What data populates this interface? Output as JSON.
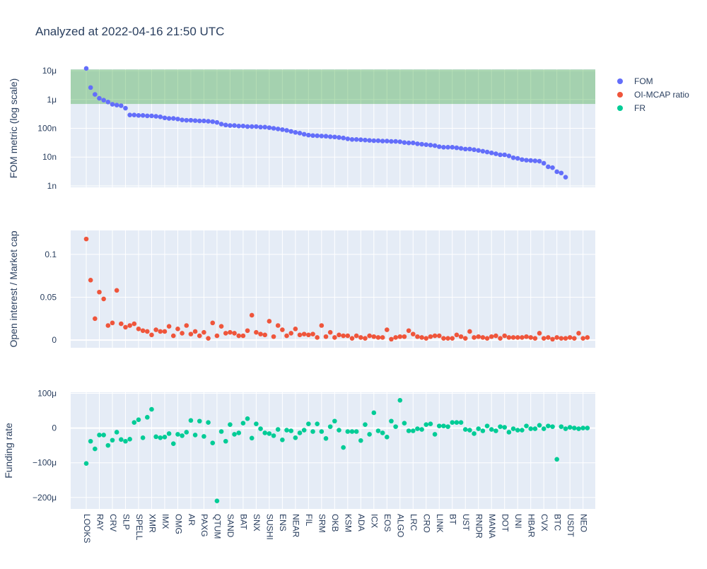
{
  "title": "Analyzed at 2022-04-16 21:50 UTC",
  "colors": {
    "plot_bg": "#e5ecf6",
    "grid": "#ffffff",
    "fom": "#636efa",
    "oi": "#ef553b",
    "fr": "#00cc96",
    "band": "#2ca02c"
  },
  "legend": {
    "placement": "top-right",
    "items": [
      "FOM",
      "OI-MCAP ratio",
      "FR"
    ]
  },
  "chart_data": [
    {
      "type": "scatter",
      "series_name": "FOM",
      "ylabel": "FOM metric (log scale)",
      "log_scale": true,
      "ylim_log10": [
        -9.05,
        -4.95
      ],
      "yticks": [
        {
          "value": 1e-05,
          "label": "10μ"
        },
        {
          "value": 1e-06,
          "label": "1μ"
        },
        {
          "value": 1e-07,
          "label": "100n"
        },
        {
          "value": 1e-08,
          "label": "10n"
        },
        {
          "value": 1e-09,
          "label": "1n"
        }
      ],
      "shaded_band": [
        7e-07,
        1.1e-05
      ],
      "values": [
        1.2e-05,
        2.6e-06,
        1.5e-06,
        1.1e-06,
        9.5e-07,
        8.2e-07,
        6.8e-07,
        6.4e-07,
        6.1e-07,
        5e-07,
        2.9e-07,
        2.9e-07,
        2.8e-07,
        2.8e-07,
        2.7e-07,
        2.7e-07,
        2.6e-07,
        2.5e-07,
        2.3e-07,
        2.2e-07,
        2.2e-07,
        2.1e-07,
        1.95e-07,
        1.9e-07,
        1.9e-07,
        1.85e-07,
        1.8e-07,
        1.8e-07,
        1.75e-07,
        1.7e-07,
        1.6e-07,
        1.4e-07,
        1.3e-07,
        1.25e-07,
        1.25e-07,
        1.2e-07,
        1.2e-07,
        1.15e-07,
        1.15e-07,
        1.15e-07,
        1.1e-07,
        1.1e-07,
        1.05e-07,
        1e-07,
        9.5e-08,
        9e-08,
        8.5e-08,
        7.8e-08,
        7.2e-08,
        6.8e-08,
        6.2e-08,
        5.8e-08,
        5.6e-08,
        5.5e-08,
        5.4e-08,
        5.3e-08,
        5.1e-08,
        5e-08,
        4.8e-08,
        4.6e-08,
        4.3e-08,
        4.1e-08,
        4.1e-08,
        4e-08,
        3.9e-08,
        3.8e-08,
        3.7e-08,
        3.7e-08,
        3.6e-08,
        3.6e-08,
        3.5e-08,
        3.5e-08,
        3.4e-08,
        3.2e-08,
        3.1e-08,
        3.1e-08,
        2.9e-08,
        2.8e-08,
        2.7e-08,
        2.6e-08,
        2.5e-08,
        2.3e-08,
        2.2e-08,
        2.2e-08,
        2.2e-08,
        2.1e-08,
        2e-08,
        1.9e-08,
        1.9e-08,
        1.8e-08,
        1.7e-08,
        1.6e-08,
        1.5e-08,
        1.4e-08,
        1.3e-08,
        1.2e-08,
        1.2e-08,
        1.1e-08,
        9.5e-09,
        9e-09,
        8.2e-09,
        7.8e-09,
        7.6e-09,
        7.4e-09,
        7.2e-09,
        6.1e-09,
        4.6e-09,
        4.3e-09,
        3.1e-09,
        2.8e-09,
        2e-09
      ]
    },
    {
      "type": "scatter",
      "series_name": "OI-MCAP ratio",
      "ylabel": "Open interest / Market cap",
      "log_scale": false,
      "ylim": [
        -0.009,
        0.128
      ],
      "yticks": [
        {
          "value": 0.1,
          "label": "0.1"
        },
        {
          "value": 0.05,
          "label": "0.05"
        },
        {
          "value": 0,
          "label": "0"
        }
      ],
      "values": [
        0.118,
        0.07,
        0.025,
        0.056,
        0.048,
        0.017,
        0.02,
        0.058,
        0.019,
        0.015,
        0.017,
        0.019,
        0.013,
        0.011,
        0.01,
        0.006,
        0.012,
        0.01,
        0.01,
        0.016,
        0.005,
        0.013,
        0.008,
        0.017,
        0.007,
        0.01,
        0.005,
        0.009,
        0.002,
        0.02,
        0.005,
        0.016,
        0.008,
        0.009,
        0.008,
        0.005,
        0.005,
        0.011,
        0.029,
        0.009,
        0.007,
        0.006,
        0.022,
        0.004,
        0.017,
        0.012,
        0.005,
        0.008,
        0.013,
        0.006,
        0.007,
        0.006,
        0.007,
        0.003,
        0.017,
        0.004,
        0.009,
        0.003,
        0.006,
        0.005,
        0.005,
        0.002,
        0.005,
        0.003,
        0.002,
        0.005,
        0.004,
        0.003,
        0.003,
        0.012,
        0.001,
        0.003,
        0.004,
        0.004,
        0.011,
        0.007,
        0.004,
        0.003,
        0.002,
        0.004,
        0.005,
        0.005,
        0.002,
        0.002,
        0.002,
        0.006,
        0.004,
        0.002,
        0.01,
        0.003,
        0.004,
        0.003,
        0.002,
        0.004,
        0.005,
        0.002,
        0.005,
        0.003,
        0.003,
        0.003,
        0.003,
        0.004,
        0.003,
        0.002,
        0.008,
        0.002,
        0.003,
        0.001,
        0.003,
        0.002,
        0.002,
        0.003,
        0.002,
        0.008,
        0.002,
        0.003
      ]
    },
    {
      "type": "scatter",
      "series_name": "FR",
      "ylabel": "Funding rate",
      "log_scale": false,
      "ylim": [
        -0.000233,
        0.000103
      ],
      "yticks": [
        {
          "value": 0.0001,
          "label": "100μ"
        },
        {
          "value": 0,
          "label": "0"
        },
        {
          "value": -0.0001,
          "label": "−100μ"
        },
        {
          "value": -0.0002,
          "label": "−200μ"
        }
      ],
      "values": [
        -0.000102,
        -3.8e-05,
        -6e-05,
        -2e-05,
        -2e-05,
        -5e-05,
        -3.5e-05,
        -1.2e-05,
        -3.3e-05,
        -3.8e-05,
        -3.2e-05,
        1.6e-05,
        2.4e-05,
        -2.8e-05,
        3.1e-05,
        5.4e-05,
        -2.5e-05,
        -2.8e-05,
        -2.6e-05,
        -1.6e-05,
        -4.5e-05,
        -1.8e-05,
        -2.2e-05,
        -1.2e-05,
        2.2e-05,
        -2e-05,
        2e-05,
        -2.4e-05,
        1.6e-05,
        -4.3e-05,
        -0.00021,
        -1e-05,
        -3.8e-05,
        1e-05,
        -1.8e-05,
        -1.4e-05,
        1.4e-05,
        2.7e-05,
        -2.9e-05,
        1.2e-05,
        -2e-06,
        -1.4e-05,
        -1.6e-05,
        -2.2e-05,
        -4e-06,
        -3.4e-05,
        -6e-06,
        -8e-06,
        -2.8e-05,
        -1.4e-05,
        -6e-06,
        1.2e-05,
        -1e-05,
        1.2e-05,
        -1e-05,
        -3e-05,
        4e-06,
        2e-05,
        -6e-06,
        -5.6e-05,
        -1e-05,
        -1e-05,
        -1e-05,
        -3.6e-05,
        1e-05,
        -1.8e-05,
        4.4e-05,
        -8e-06,
        -1.4e-05,
        -2.6e-05,
        2e-05,
        4e-06,
        8e-05,
        1.4e-05,
        -8e-06,
        -8e-06,
        -2e-06,
        -4e-06,
        1e-05,
        1.2e-05,
        -1.8e-05,
        6e-06,
        6e-06,
        4e-06,
        1.6e-05,
        1.6e-05,
        1.6e-05,
        -4e-06,
        -6e-06,
        -1.6e-05,
        -2e-06,
        -8e-06,
        6e-06,
        -4e-06,
        -8e-06,
        4e-06,
        2e-06,
        -1.2e-05,
        -2e-06,
        -6e-06,
        -6e-06,
        6e-06,
        -2e-06,
        -2e-06,
        8e-06,
        -2e-06,
        6e-06,
        4e-06,
        -9e-05,
        4e-06,
        -2e-06,
        2e-06,
        0,
        -2e-06,
        0,
        0
      ]
    }
  ],
  "x_tick_labels": [
    "LOOKS",
    "RAY",
    "CRV",
    "SLP",
    "SPELL",
    "XMR",
    "IMX",
    "OMG",
    "AR",
    "PAXG",
    "QTUM",
    "SAND",
    "BAT",
    "SNX",
    "SUSHI",
    "ENS",
    "NEAR",
    "FIL",
    "SRM",
    "OKB",
    "KSM",
    "ADA",
    "ICX",
    "EOS",
    "ALGO",
    "LRC",
    "CRO",
    "LINK",
    "BT",
    "UST",
    "RNDR",
    "MANA",
    "DOT",
    "UNI",
    "HBAR",
    "CVX",
    "BTC",
    "USDT",
    "NEO"
  ]
}
